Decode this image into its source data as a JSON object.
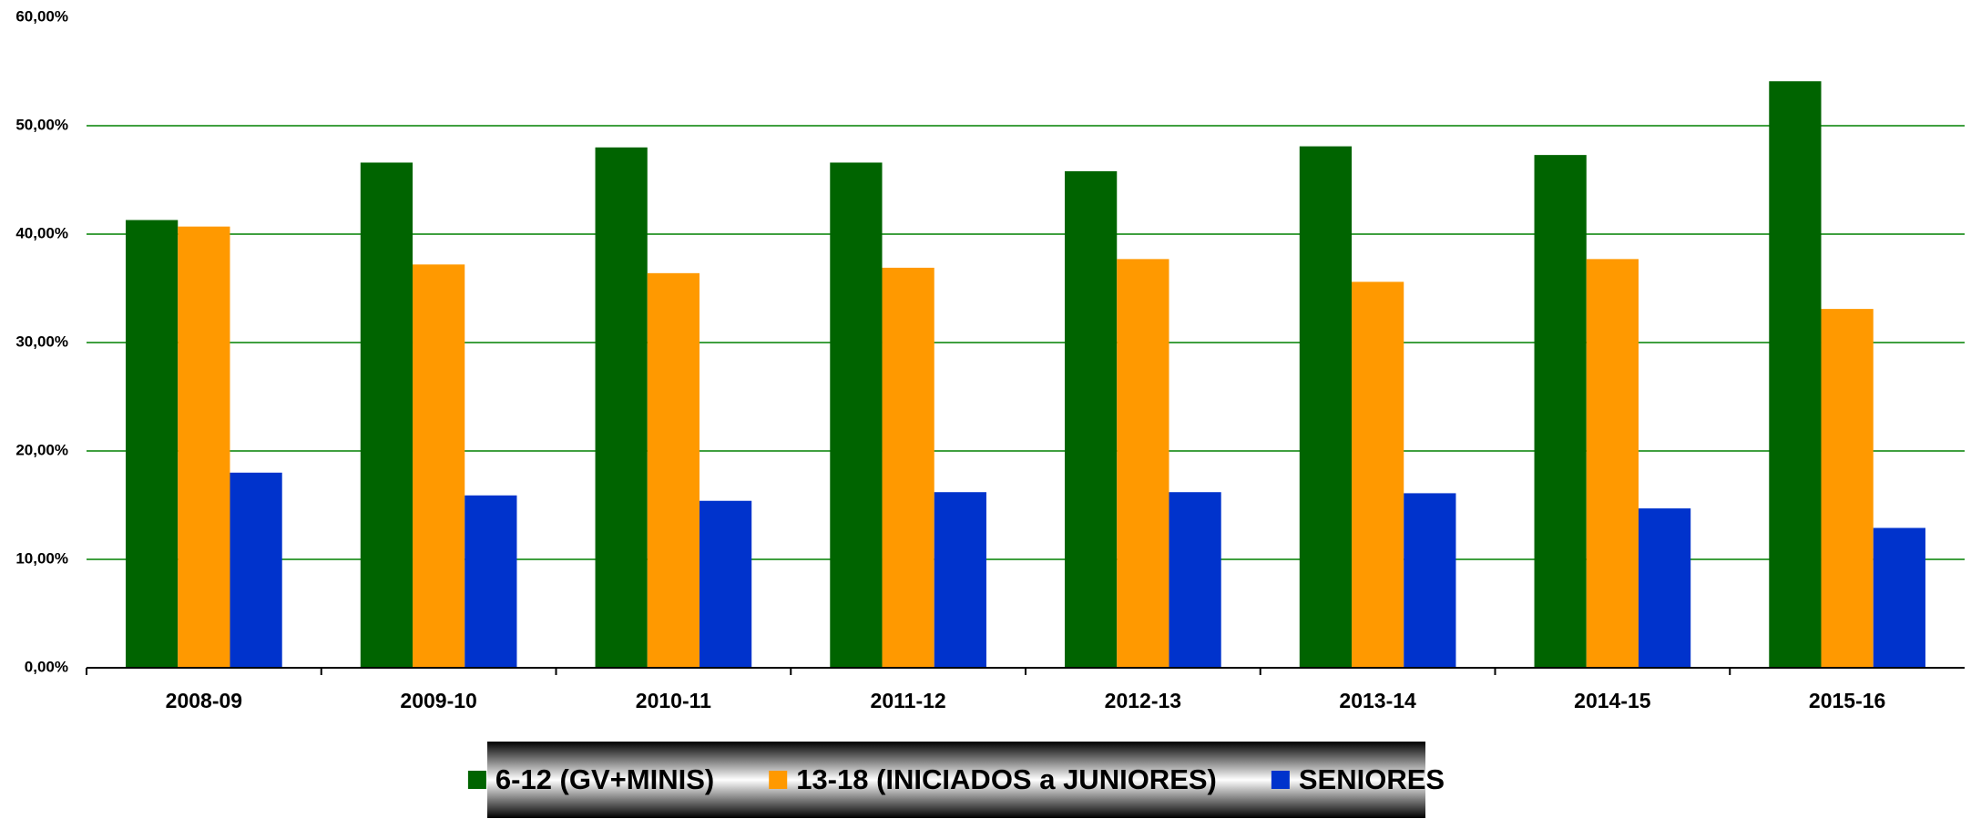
{
  "chart_data": {
    "type": "bar",
    "categories": [
      "2008-09",
      "2009-10",
      "2010-11",
      "2011-12",
      "2012-13",
      "2013-14",
      "2014-15",
      "2015-16"
    ],
    "series": [
      {
        "name": "6-12 (GV+MINIS)",
        "color": "#006400",
        "values": [
          41.3,
          46.6,
          48.0,
          46.6,
          45.8,
          48.1,
          47.3,
          54.1
        ]
      },
      {
        "name": "13-18 (INICIADOS a JUNIORES)",
        "color": "#ff9900",
        "values": [
          40.7,
          37.2,
          36.4,
          36.9,
          37.7,
          35.6,
          37.7,
          33.1
        ]
      },
      {
        "name": "SENIORES",
        "color": "#0033cc",
        "values": [
          18.0,
          15.9,
          15.4,
          16.2,
          16.2,
          16.1,
          14.7,
          12.9
        ]
      }
    ],
    "ylim": [
      0,
      60
    ],
    "yticks": [
      {
        "value": 0,
        "label": "0,00%"
      },
      {
        "value": 10,
        "label": "10,00%"
      },
      {
        "value": 20,
        "label": "20,00%"
      },
      {
        "value": 30,
        "label": "30,00%"
      },
      {
        "value": 40,
        "label": "40,00%"
      },
      {
        "value": 50,
        "label": "50,00%"
      },
      {
        "value": 60,
        "label": "60,00%"
      }
    ],
    "grid": true,
    "grid_color": "#008000",
    "legend": "bottom"
  }
}
